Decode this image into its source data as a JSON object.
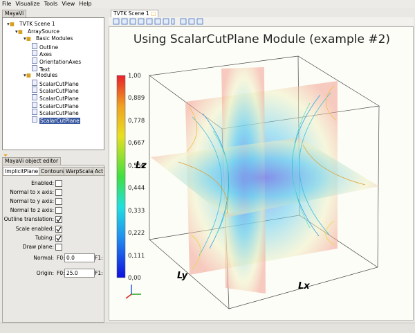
{
  "menu": [
    "File",
    "Visualize",
    "Tools",
    "View",
    "Help"
  ],
  "left_panel": {
    "tab": "MayaVi",
    "tree": [
      {
        "label": "TVTK Scene 1",
        "children": [
          {
            "label": "ArraySource",
            "children": [
              {
                "label": "Basic Modules",
                "children": [
                  {
                    "label": "Outline"
                  },
                  {
                    "label": "Axes"
                  },
                  {
                    "label": "OrientationAxes"
                  },
                  {
                    "label": "Text"
                  }
                ]
              },
              {
                "label": "Modules",
                "children": [
                  {
                    "label": "ScalarCutPlane"
                  },
                  {
                    "label": "ScalarCutPlane"
                  },
                  {
                    "label": "ScalarCutPlane"
                  },
                  {
                    "label": "ScalarCutPlane"
                  },
                  {
                    "label": "ScalarCutPlane"
                  },
                  {
                    "label": "ScalarCutPlane",
                    "selected": true
                  }
                ]
              }
            ]
          }
        ]
      }
    ]
  },
  "editor": {
    "title": "MayaVi object editor",
    "tabs": [
      "ImplicitPlane",
      "Contours",
      "WarpScalar",
      "Act"
    ],
    "fields": [
      {
        "label": "Enabled:",
        "checked": false
      },
      {
        "label": "Normal to x axis:",
        "checked": false
      },
      {
        "label": "Normal to y axis:",
        "checked": false
      },
      {
        "label": "Normal to z axis:",
        "checked": false
      },
      {
        "label": "Outline translation:",
        "checked": true
      },
      {
        "label": "Scale enabled:",
        "checked": true
      },
      {
        "label": "Tubing:",
        "checked": true
      },
      {
        "label": "Draw plane:",
        "checked": false
      }
    ],
    "vectors": [
      {
        "label": "Normal:",
        "f0_label": "F0:",
        "f0": "0.0",
        "f1_label": "F1:"
      },
      {
        "label": "Origin:",
        "f0_label": "F0:",
        "f0": "25.0",
        "f1_label": "F1:"
      }
    ]
  },
  "scene": {
    "tab": "TVTK Scene 1",
    "title": "Using ScalarCutPlane Module (example #2)",
    "colorbar_labels": [
      "1,00",
      "0,889",
      "0,778",
      "0,667",
      "0,556",
      "0,444",
      "0,333",
      "0,222",
      "0,111",
      "0,00"
    ],
    "axis_labels": {
      "z": "Lz",
      "y": "Ly",
      "x": "Lx"
    }
  }
}
